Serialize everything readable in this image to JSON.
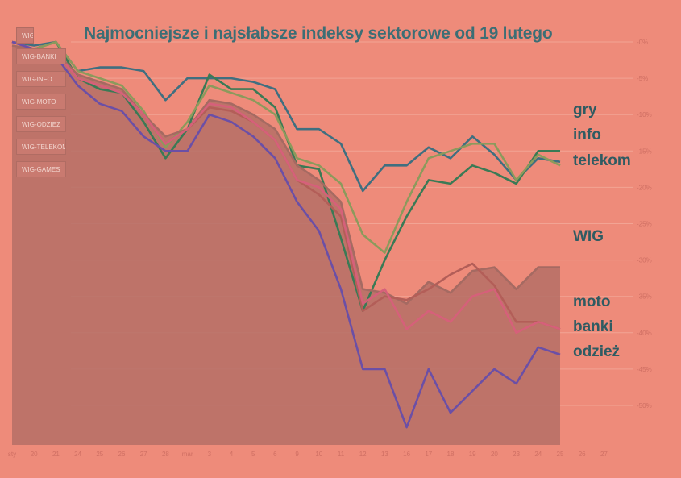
{
  "chart_data": {
    "type": "line",
    "title": "Najmocniejsze i najsłabsze indeksy sektorowe od 19 lutego",
    "xlabel": "",
    "ylabel": "",
    "x_ticks": [
      "sty",
      "20",
      "21",
      "24",
      "25",
      "26",
      "27",
      "28",
      "mar",
      "3",
      "4",
      "5",
      "6",
      "9",
      "10",
      "11",
      "12",
      "13",
      "16",
      "17",
      "18",
      "19",
      "20",
      "23",
      "24",
      "25",
      "26",
      "27"
    ],
    "y_ticks": [
      "-0%",
      "-5%",
      "-10%",
      "-15%",
      "-20%",
      "-25%",
      "-30%",
      "-35%",
      "-40%",
      "-45%",
      "-50%"
    ],
    "y_tick_values": [
      0,
      -5,
      -10,
      -15,
      -20,
      -25,
      -30,
      -35,
      -40,
      -45,
      -50
    ],
    "ylim": [
      -58,
      2
    ],
    "legend": [
      "WIG",
      "WIG-BANKI",
      "WIG-INFO",
      "WIG-MOTO",
      "WIG-ODZIEZ",
      "WIG-TELEKOM",
      "WIG-GAMES"
    ],
    "series": [
      {
        "name": "gry",
        "label": "gry",
        "color": "#3f6f80",
        "values": [
          0,
          -0.5,
          0,
          -4,
          -3.5,
          -3.5,
          -4,
          -8,
          -5,
          -5,
          -5,
          -5.5,
          -6.5,
          -12,
          -12,
          -14,
          -20.5,
          -17,
          -17,
          -14.5,
          -16,
          -13,
          -15.5,
          -19,
          -16,
          -16.5
        ]
      },
      {
        "name": "info",
        "label": "info",
        "color": "#3a7a55",
        "values": [
          0,
          -1,
          0,
          -5,
          -6.5,
          -7,
          -11,
          -16,
          -12,
          -4.5,
          -6.5,
          -6.5,
          -9,
          -17,
          -17.5,
          -27,
          -37,
          -30,
          -24,
          -19,
          -19.5,
          -17,
          -18,
          -19.5,
          -15,
          -15
        ]
      },
      {
        "name": "telekom",
        "label": "telekom",
        "color": "#8b9a5c",
        "values": [
          0,
          -1,
          0,
          -4,
          -5,
          -6,
          -9.5,
          -14.5,
          -11,
          -6,
          -7,
          -8,
          -10,
          -16,
          -17,
          -19.5,
          -26.5,
          -29,
          -22,
          -16,
          -15,
          -14,
          -14,
          -19,
          -15.5,
          -17
        ]
      },
      {
        "name": "WIG",
        "label": "WIG",
        "color": "#a56a62",
        "values": [
          -0.5,
          -1,
          -1.5,
          -4.5,
          -5.5,
          -6.5,
          -10,
          -13,
          -12,
          -8,
          -8.5,
          -10,
          -12,
          -17,
          -19,
          -22,
          -34,
          -34.5,
          -36,
          -33,
          -34.5,
          -31.5,
          -31,
          -34,
          -31,
          -31
        ]
      },
      {
        "name": "moto",
        "label": "moto",
        "color": "#b35e58",
        "values": [
          0,
          -1,
          -1.5,
          -5,
          -6,
          -7,
          -10,
          -14,
          -12,
          -9,
          -9.5,
          -11,
          -13.5,
          -19,
          -21,
          -24,
          -37,
          -35,
          -35.5,
          -34,
          -32,
          -30.5,
          -33.5,
          -38.5,
          -38.5,
          -39.5
        ]
      },
      {
        "name": "banki",
        "label": "banki",
        "color": "#d6607a",
        "values": [
          0,
          -1,
          -1.5,
          -5,
          -6,
          -7,
          -10,
          -14,
          -12,
          -8.5,
          -9,
          -11,
          -13.5,
          -19,
          -20,
          -23,
          -36,
          -34,
          -39.5,
          -37,
          -38.5,
          -35,
          -34,
          -40,
          -38.5,
          -39.5
        ]
      },
      {
        "name": "odzież",
        "label": "odzież",
        "color": "#6b4fa6",
        "values": [
          0,
          -1,
          -2,
          -6,
          -8.5,
          -9.5,
          -13,
          -15,
          -15,
          -10,
          -11,
          -13,
          -16,
          -22,
          -26,
          -34,
          -45,
          -45,
          -53,
          -45,
          -51,
          -48,
          -45,
          -47,
          -42,
          -43
        ]
      }
    ],
    "fill_series": "WIG"
  },
  "colors": {
    "background": "#ee8b7a",
    "grid": "#f2a494",
    "fill": "#b56e66",
    "title": "#3c6e75",
    "tick": "#cf6f63"
  }
}
